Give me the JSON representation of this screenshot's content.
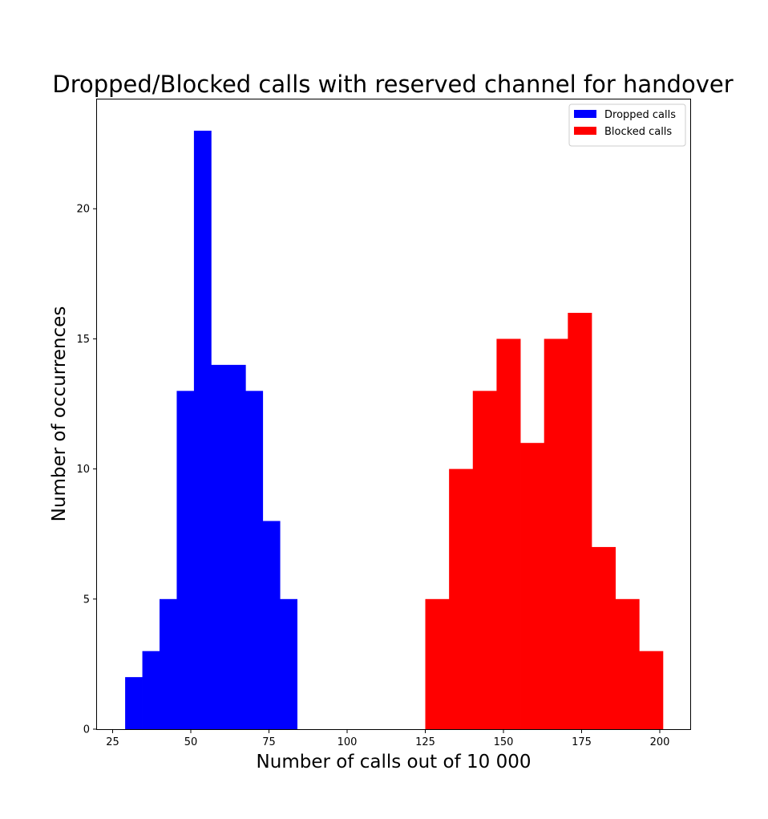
{
  "chart_data": {
    "type": "bar",
    "title": "Dropped/Blocked calls with reserved channel for handover",
    "xlabel": "Number of calls out of 10 000",
    "ylabel": "Number of occurrences",
    "xlim": [
      20,
      210
    ],
    "ylim": [
      0,
      24.2
    ],
    "xticks": [
      25,
      50,
      75,
      100,
      125,
      150,
      175,
      200
    ],
    "yticks": [
      0,
      5,
      10,
      15,
      20
    ],
    "grid": false,
    "legend_position": "top-right",
    "series": [
      {
        "name": "Dropped calls",
        "color": "#0000ff",
        "bin_edges": [
          29.0,
          34.5,
          40.0,
          45.5,
          51.0,
          56.5,
          62.0,
          67.5,
          73.0,
          78.5,
          84.0
        ],
        "counts": [
          2,
          3,
          5,
          13,
          23,
          14,
          14,
          13,
          8,
          5
        ]
      },
      {
        "name": "Blocked calls",
        "color": "#ff0000",
        "bin_edges": [
          125.0,
          132.6,
          140.2,
          147.8,
          155.4,
          163.0,
          170.6,
          178.2,
          185.8,
          193.4,
          201.0
        ],
        "counts": [
          5,
          10,
          13,
          15,
          11,
          15,
          16,
          7,
          5,
          3
        ]
      }
    ]
  }
}
